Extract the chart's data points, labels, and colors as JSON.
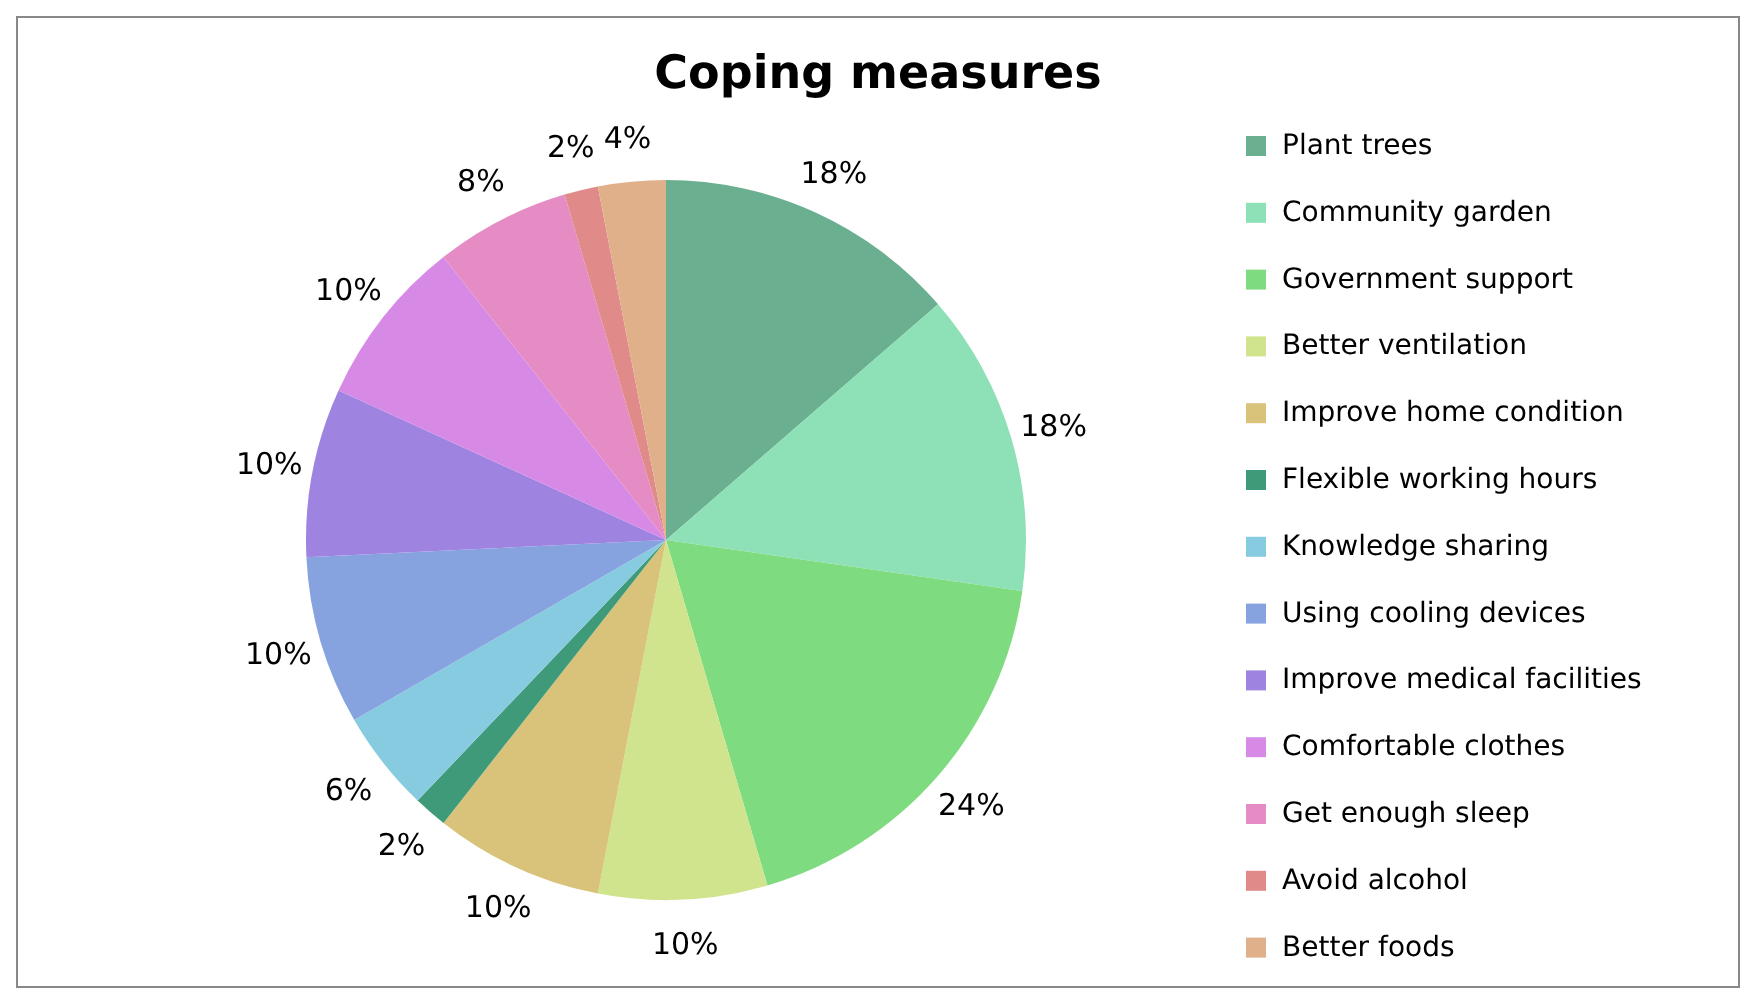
{
  "chart_data": {
    "type": "pie",
    "title": "Coping measures",
    "categories": [
      "Plant trees",
      "Community garden",
      "Government support",
      "Better ventilation",
      "Improve home condition",
      "Flexible working hours",
      "Knowledge sharing",
      "Using cooling devices",
      "Improve medical facilities",
      "Comfortable clothes",
      "Get enough sleep",
      "Avoid alcohol",
      "Better foods"
    ],
    "values": [
      18,
      18,
      24,
      10,
      10,
      2,
      6,
      10,
      10,
      10,
      8,
      2,
      4
    ],
    "colors": [
      "#6aaf8f",
      "#8ee0b6",
      "#7fdb7f",
      "#cfe48c",
      "#d9c37a",
      "#3f9a7a",
      "#86cbe0",
      "#86a3e0",
      "#9e84e0",
      "#d68ae6",
      "#e58cc4",
      "#e08a8a",
      "#e0b08a"
    ],
    "legend": "right",
    "value_labels": [
      "18%",
      "18%",
      "24%",
      "10%",
      "10%",
      "2%",
      "6%",
      "10%",
      "10%",
      "10%",
      "8%",
      "2%",
      "4%"
    ]
  }
}
